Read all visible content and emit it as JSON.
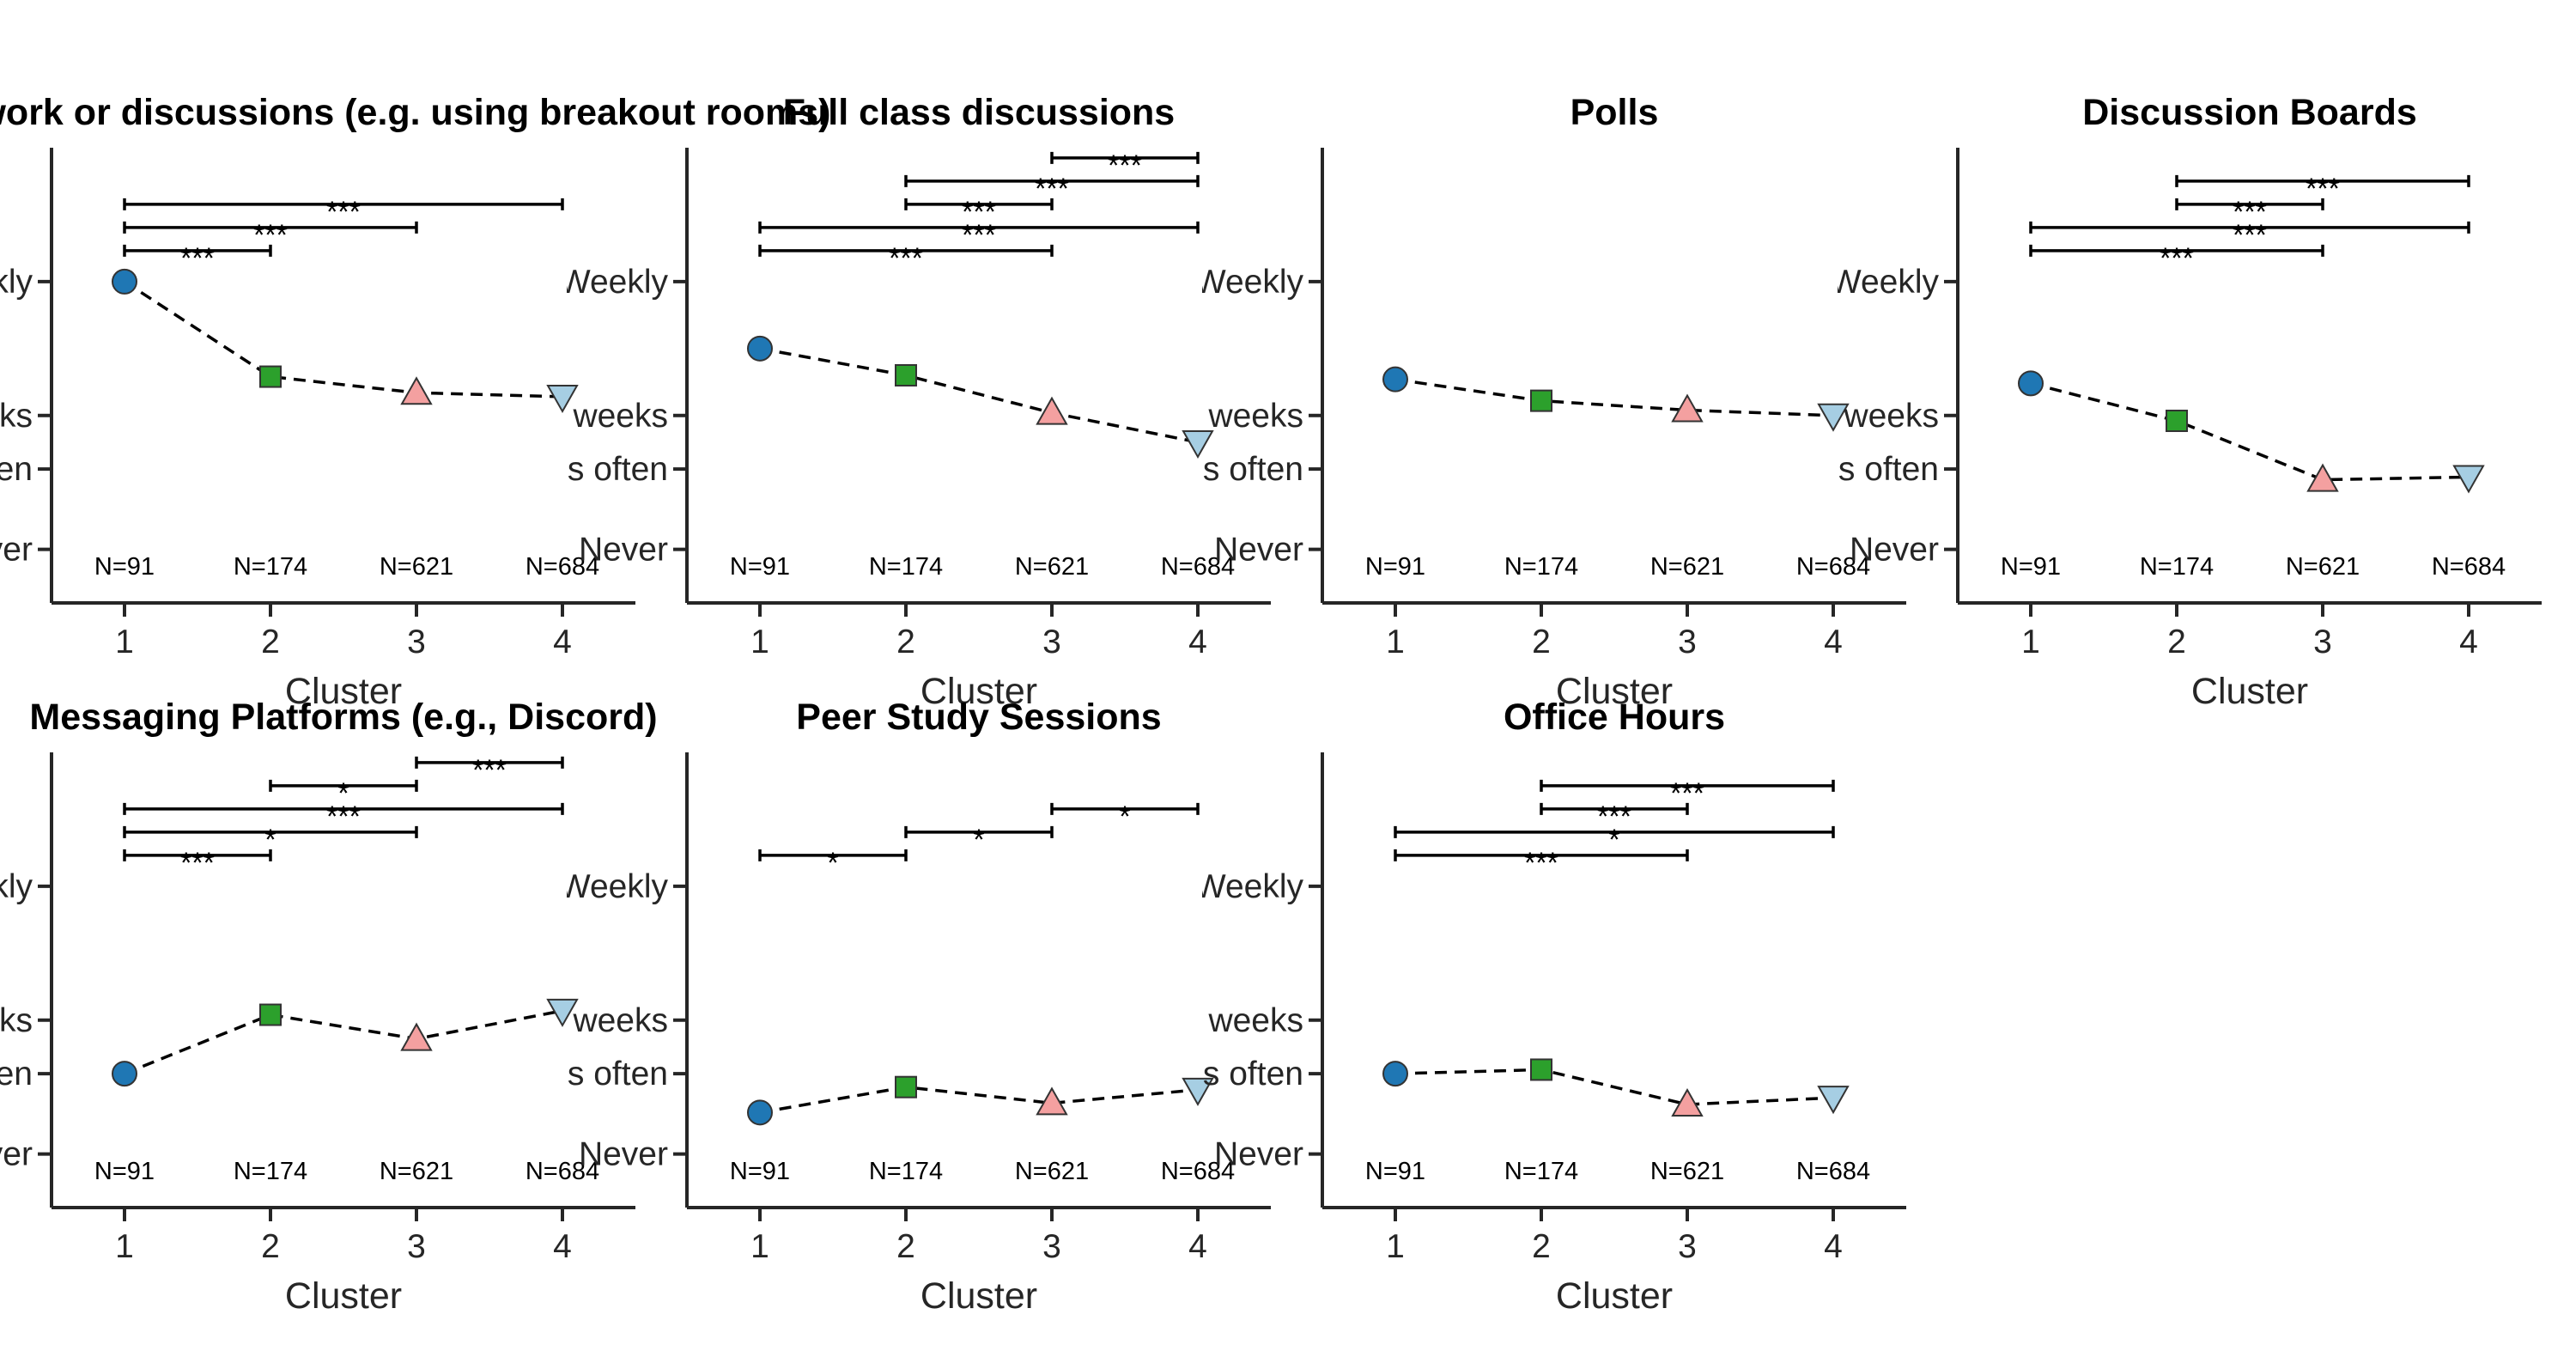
{
  "chart_data": [
    {
      "type": "line",
      "title": "Group work or discussions (e.g. using breakout rooms)",
      "xlabel": "Cluster",
      "x": [
        1,
        2,
        3,
        4
      ],
      "values": [
        4.0,
        3.29,
        3.17,
        3.14
      ],
      "n_labels": [
        "N=91",
        "N=174",
        "N=621",
        "N=684"
      ],
      "ytick_labels": [
        "Never",
        "Less often",
        "Every few weeks",
        "Weekly"
      ],
      "significance": [
        {
          "from": 1,
          "to": 2,
          "label": "***"
        },
        {
          "from": 1,
          "to": 3,
          "label": "***"
        },
        {
          "from": 1,
          "to": 4,
          "label": "***"
        }
      ]
    },
    {
      "type": "line",
      "title": "Full class discussions",
      "xlabel": "Cluster",
      "x": [
        1,
        2,
        3,
        4
      ],
      "values": [
        3.5,
        3.3,
        3.02,
        2.8
      ],
      "n_labels": [
        "N=91",
        "N=174",
        "N=621",
        "N=684"
      ],
      "ytick_labels": [
        "Never",
        "Less often",
        "Every few weeks",
        "Weekly"
      ],
      "significance": [
        {
          "from": 1,
          "to": 3,
          "label": "***"
        },
        {
          "from": 1,
          "to": 4,
          "label": "***"
        },
        {
          "from": 2,
          "to": 3,
          "label": "***"
        },
        {
          "from": 2,
          "to": 4,
          "label": "***"
        },
        {
          "from": 3,
          "to": 4,
          "label": "***"
        }
      ]
    },
    {
      "type": "line",
      "title": "Polls",
      "xlabel": "Cluster",
      "x": [
        1,
        2,
        3,
        4
      ],
      "values": [
        3.27,
        3.11,
        3.04,
        3.0
      ],
      "n_labels": [
        "N=91",
        "N=174",
        "N=621",
        "N=684"
      ],
      "ytick_labels": [
        "Never",
        "Less often",
        "Every few weeks",
        "Weekly"
      ],
      "significance": []
    },
    {
      "type": "line",
      "title": "Discussion Boards",
      "xlabel": "Cluster",
      "x": [
        1,
        2,
        3,
        4
      ],
      "values": [
        3.24,
        2.96,
        2.52,
        2.54
      ],
      "n_labels": [
        "N=91",
        "N=174",
        "N=621",
        "N=684"
      ],
      "ytick_labels": [
        "Never",
        "Less often",
        "Every few weeks",
        "Weekly"
      ],
      "significance": [
        {
          "from": 1,
          "to": 3,
          "label": "***"
        },
        {
          "from": 1,
          "to": 4,
          "label": "***"
        },
        {
          "from": 2,
          "to": 3,
          "label": "***"
        },
        {
          "from": 2,
          "to": 4,
          "label": "***"
        }
      ]
    },
    {
      "type": "line",
      "title": "Messaging Platforms (e.g., Discord)",
      "xlabel": "Cluster",
      "x": [
        1,
        2,
        3,
        4
      ],
      "values": [
        2.6,
        3.04,
        2.86,
        3.07
      ],
      "n_labels": [
        "N=91",
        "N=174",
        "N=621",
        "N=684"
      ],
      "ytick_labels": [
        "Never",
        "Less often",
        "Every few weeks",
        "Weekly"
      ],
      "significance": [
        {
          "from": 1,
          "to": 2,
          "label": "***"
        },
        {
          "from": 1,
          "to": 3,
          "label": "*"
        },
        {
          "from": 1,
          "to": 4,
          "label": "***"
        },
        {
          "from": 2,
          "to": 3,
          "label": "*"
        },
        {
          "from": 3,
          "to": 4,
          "label": "***"
        }
      ]
    },
    {
      "type": "line",
      "title": "Peer Study Sessions",
      "xlabel": "Cluster",
      "x": [
        1,
        2,
        3,
        4
      ],
      "values": [
        2.31,
        2.5,
        2.38,
        2.48
      ],
      "n_labels": [
        "N=91",
        "N=174",
        "N=621",
        "N=684"
      ],
      "ytick_labels": [
        "Never",
        "Less often",
        "Every few weeks",
        "Weekly"
      ],
      "significance": [
        {
          "from": 1,
          "to": 2,
          "label": "*"
        },
        {
          "from": 2,
          "to": 3,
          "label": "*"
        },
        {
          "from": 3,
          "to": 4,
          "label": "*"
        }
      ]
    },
    {
      "type": "line",
      "title": "Office Hours",
      "xlabel": "Cluster",
      "x": [
        1,
        2,
        3,
        4
      ],
      "values": [
        2.6,
        2.63,
        2.37,
        2.42
      ],
      "n_labels": [
        "N=91",
        "N=174",
        "N=621",
        "N=684"
      ],
      "ytick_labels": [
        "Never",
        "Less often",
        "Every few weeks",
        "Weekly"
      ],
      "significance": [
        {
          "from": 1,
          "to": 3,
          "label": "***"
        },
        {
          "from": 1,
          "to": 4,
          "label": "*"
        },
        {
          "from": 2,
          "to": 3,
          "label": "***"
        },
        {
          "from": 2,
          "to": 4,
          "label": "***"
        }
      ]
    }
  ],
  "y_scale": {
    "ticks": [
      2,
      2.6,
      3,
      4
    ],
    "ylim": [
      1.6,
      5.0
    ]
  },
  "cluster_styles": [
    {
      "cluster": 1,
      "marker": "circle",
      "color": "#1f77b4"
    },
    {
      "cluster": 2,
      "marker": "square",
      "color": "#2ca02c"
    },
    {
      "cluster": 3,
      "marker": "triangle-up",
      "color": "#f4a0a0"
    },
    {
      "cluster": 4,
      "marker": "triangle-down",
      "color": "#a6cee3"
    }
  ]
}
